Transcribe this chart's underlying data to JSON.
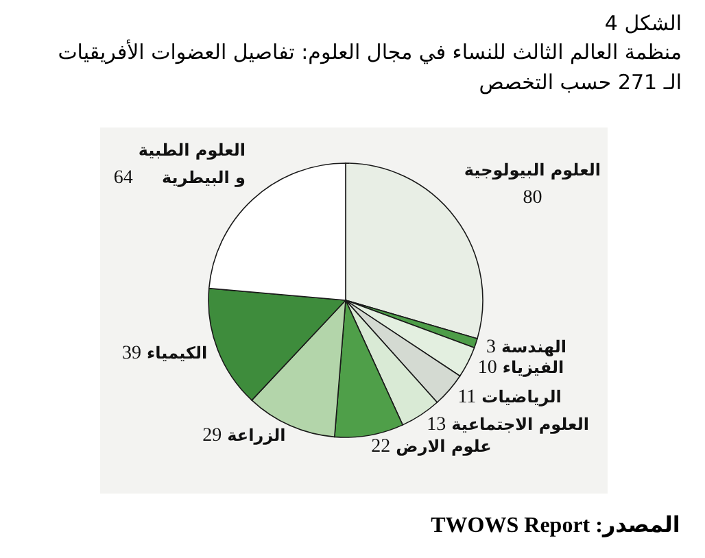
{
  "chart_data": {
    "type": "pie",
    "title": "الشكل 4",
    "subtitle": "منظمة العالم الثالث للنساء في مجال العلوم: تفاصيل العضوات الأفريقيات الـ 271 حسب التخصص",
    "categories": [
      "العلوم البيولوجية",
      "الهندسة",
      "الفيزياء",
      "الرياضيات",
      "العلوم الاجتماعية",
      "علوم الارض",
      "الزراعة",
      "الكيمياء",
      "العلوم الطبية و البيطرية"
    ],
    "values": [
      80,
      3,
      10,
      11,
      13,
      22,
      29,
      39,
      64
    ],
    "colors": [
      "#e8eee5",
      "#4d9d48",
      "#e3efe0",
      "#d4dad2",
      "#d9ead5",
      "#4f9f49",
      "#b3d5aa",
      "#3e8c3c",
      "#ffffff"
    ],
    "data_labels": true,
    "annotations": [
      "المصدر: TWOWS Report"
    ]
  }
}
